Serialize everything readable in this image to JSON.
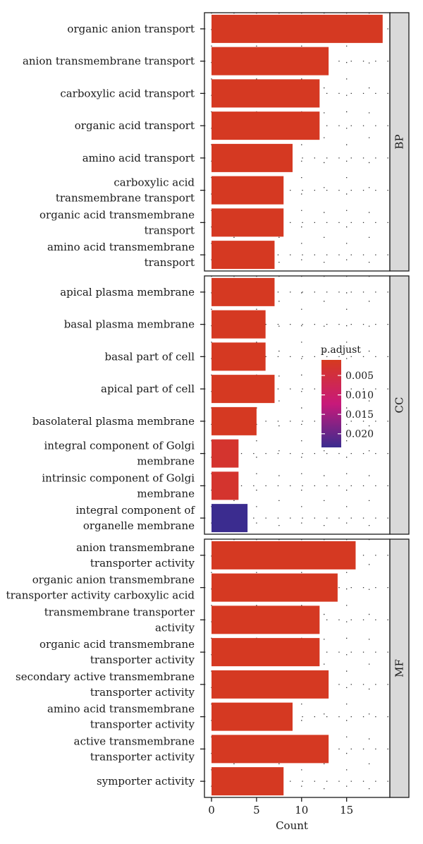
{
  "chart_data": {
    "type": "bar",
    "orientation": "horizontal",
    "xlabel": "Count",
    "xlim": [
      0,
      19.8
    ],
    "xticks": [
      0,
      5,
      10,
      15
    ],
    "legend": {
      "title": "p.adjust",
      "ticks": [
        "0.005",
        "0.010",
        "0.015",
        "0.020"
      ],
      "tick_values": [
        0.005,
        0.01,
        0.015,
        0.02
      ],
      "range": [
        0.001,
        0.0235
      ],
      "color_low": "#d63a1e",
      "color_mid": "#c8197a",
      "color_high": "#3b2c8f"
    },
    "panels": [
      {
        "name": "BP",
        "items": [
          {
            "lines": [
              "organic anion transport"
            ],
            "count": 19,
            "p_adjust": 0.0015
          },
          {
            "lines": [
              "anion transmembrane transport"
            ],
            "count": 13,
            "p_adjust": 0.0015
          },
          {
            "lines": [
              "carboxylic acid transport"
            ],
            "count": 12,
            "p_adjust": 0.0015
          },
          {
            "lines": [
              "organic acid transport"
            ],
            "count": 12,
            "p_adjust": 0.0015
          },
          {
            "lines": [
              "amino acid transport"
            ],
            "count": 9,
            "p_adjust": 0.0015
          },
          {
            "lines": [
              "carboxylic acid",
              "transmembrane transport"
            ],
            "count": 8,
            "p_adjust": 0.0015
          },
          {
            "lines": [
              "organic acid transmembrane",
              "transport"
            ],
            "count": 8,
            "p_adjust": 0.0015
          },
          {
            "lines": [
              "amino acid transmembrane",
              "transport"
            ],
            "count": 7,
            "p_adjust": 0.0015
          }
        ]
      },
      {
        "name": "CC",
        "items": [
          {
            "lines": [
              "apical plasma membrane"
            ],
            "count": 7,
            "p_adjust": 0.0015
          },
          {
            "lines": [
              "basal plasma membrane"
            ],
            "count": 6,
            "p_adjust": 0.0015
          },
          {
            "lines": [
              "basal part of cell"
            ],
            "count": 6,
            "p_adjust": 0.0015
          },
          {
            "lines": [
              "apical part of cell"
            ],
            "count": 7,
            "p_adjust": 0.0015
          },
          {
            "lines": [
              "basolateral plasma membrane"
            ],
            "count": 5,
            "p_adjust": 0.0015
          },
          {
            "lines": [
              "integral component of Golgi",
              "membrane"
            ],
            "count": 3,
            "p_adjust": 0.003
          },
          {
            "lines": [
              "intrinsic component of Golgi",
              "membrane"
            ],
            "count": 3,
            "p_adjust": 0.003
          },
          {
            "lines": [
              "integral component of",
              "organelle membrane"
            ],
            "count": 4,
            "p_adjust": 0.0235
          }
        ]
      },
      {
        "name": "MF",
        "items": [
          {
            "lines": [
              "anion transmembrane",
              "transporter activity"
            ],
            "count": 16,
            "p_adjust": 0.0015
          },
          {
            "lines": [
              "organic anion transmembrane",
              "transporter activity carboxylic acid"
            ],
            "count": 14,
            "p_adjust": 0.0015
          },
          {
            "lines": [
              "transmembrane transporter",
              "activity"
            ],
            "count": 12,
            "p_adjust": 0.0015
          },
          {
            "lines": [
              "organic acid transmembrane",
              "transporter activity"
            ],
            "count": 12,
            "p_adjust": 0.0015
          },
          {
            "lines": [
              "secondary active transmembrane",
              "transporter activity"
            ],
            "count": 13,
            "p_adjust": 0.0015
          },
          {
            "lines": [
              "amino acid transmembrane",
              "transporter activity"
            ],
            "count": 9,
            "p_adjust": 0.0015
          },
          {
            "lines": [
              "active transmembrane",
              "transporter activity"
            ],
            "count": 13,
            "p_adjust": 0.0015
          },
          {
            "lines": [
              "symporter activity"
            ],
            "count": 8,
            "p_adjust": 0.0015
          }
        ]
      }
    ]
  }
}
